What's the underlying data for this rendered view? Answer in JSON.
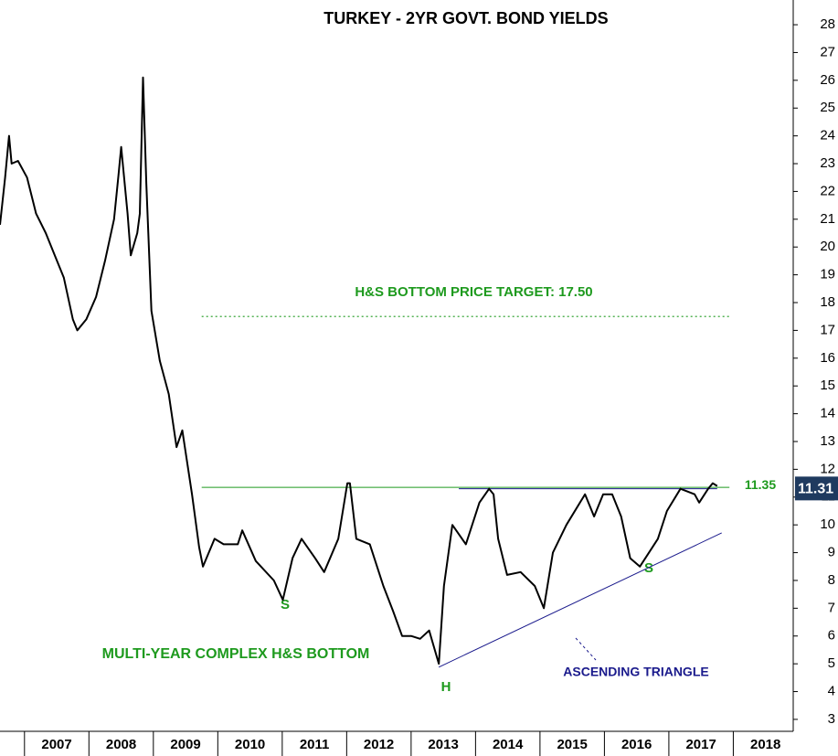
{
  "chart_data": {
    "type": "line",
    "title": "TURKEY - 2YR GOVT. BOND YIELDS",
    "color": "#000000",
    "x": [
      2006.62,
      2006.7,
      2006.76,
      2006.8,
      2006.9,
      2007.04,
      2007.18,
      2007.33,
      2007.47,
      2007.61,
      2007.75,
      2007.82,
      2007.96,
      2008.11,
      2008.25,
      2008.39,
      2008.46,
      2008.5,
      2008.6,
      2008.65,
      2008.75,
      2008.79,
      2008.84,
      2008.89,
      2008.97,
      2009.1,
      2009.24,
      2009.36,
      2009.45,
      2009.6,
      2009.71,
      2009.77,
      2009.95,
      2010.09,
      2010.31,
      2010.38,
      2010.59,
      2010.87,
      2011.01,
      2011.16,
      2011.3,
      2011.51,
      2011.65,
      2011.87,
      2012.01,
      2012.05,
      2012.15,
      2012.36,
      2012.57,
      2012.72,
      2012.86,
      2013.0,
      2013.14,
      2013.28,
      2013.43,
      2013.51,
      2013.64,
      2013.85,
      2014.06,
      2014.21,
      2014.28,
      2014.35,
      2014.49,
      2014.7,
      2014.92,
      2015.06,
      2015.2,
      2015.41,
      2015.7,
      2015.84,
      2015.98,
      2016.12,
      2016.26,
      2016.4,
      2016.55,
      2016.69,
      2016.83,
      2016.97,
      2017.18,
      2017.4,
      2017.47,
      2017.61,
      2017.68,
      2017.75
    ],
    "values": [
      20.8,
      22.5,
      24.0,
      23.0,
      23.1,
      22.5,
      21.2,
      20.5,
      19.7,
      18.9,
      17.4,
      17.0,
      17.4,
      18.2,
      19.5,
      21.0,
      22.6,
      23.6,
      21.2,
      19.7,
      20.5,
      21.2,
      26.1,
      22.3,
      17.7,
      15.9,
      14.7,
      12.8,
      13.4,
      11.1,
      9.2,
      8.5,
      9.5,
      9.3,
      9.3,
      9.8,
      8.7,
      8.0,
      7.3,
      8.8,
      9.5,
      8.8,
      8.3,
      9.5,
      11.5,
      11.5,
      9.5,
      9.3,
      7.8,
      6.9,
      6.0,
      6.0,
      5.9,
      6.2,
      5.0,
      7.8,
      10.0,
      9.3,
      10.8,
      11.3,
      11.1,
      9.5,
      8.2,
      8.3,
      7.8,
      7.0,
      9.0,
      10.0,
      11.1,
      10.3,
      11.1,
      11.1,
      10.3,
      8.8,
      8.5,
      9.0,
      9.5,
      10.5,
      11.3,
      11.1,
      10.8,
      11.3,
      11.5,
      11.4
    ],
    "xlim": [
      2006.62,
      2018.93
    ],
    "xticks": [
      2007,
      2008,
      2009,
      2010,
      2011,
      2012,
      2013,
      2014,
      2015,
      2016,
      2017,
      2018
    ],
    "ylim": [
      2.57,
      28.89
    ],
    "yticks": [
      3,
      4,
      5,
      6,
      7,
      8,
      9,
      10,
      11,
      12,
      13,
      14,
      15,
      16,
      17,
      18,
      19,
      20,
      21,
      22,
      23,
      24,
      25,
      26,
      27,
      28
    ],
    "grid": false,
    "last_value": 11.31,
    "last_value_color": "#1f3a5f",
    "target_line": {
      "label": "H&S BOTTOM PRICE TARGET: 17.50",
      "y": 17.5,
      "x": [
        2009.75,
        2017.97
      ],
      "color": "#1e9a1e"
    },
    "neckline": {
      "y": 11.35,
      "x": [
        2009.75,
        2017.94
      ],
      "color": "#1e9a1e"
    },
    "resistance_line": {
      "y": 11.3,
      "x": [
        2013.74,
        2017.75
      ],
      "color": "#1a1a8c"
    },
    "support_line": {
      "x": [
        2013.43,
        2017.82
      ],
      "y": [
        4.88,
        9.71
      ],
      "color": "#1a1a8c"
    },
    "annotations": [
      "S",
      "H",
      "S",
      "MULTI-YEAR COMPLEX H&S BOTTOM",
      "ASCENDING TRIANGLE"
    ]
  }
}
